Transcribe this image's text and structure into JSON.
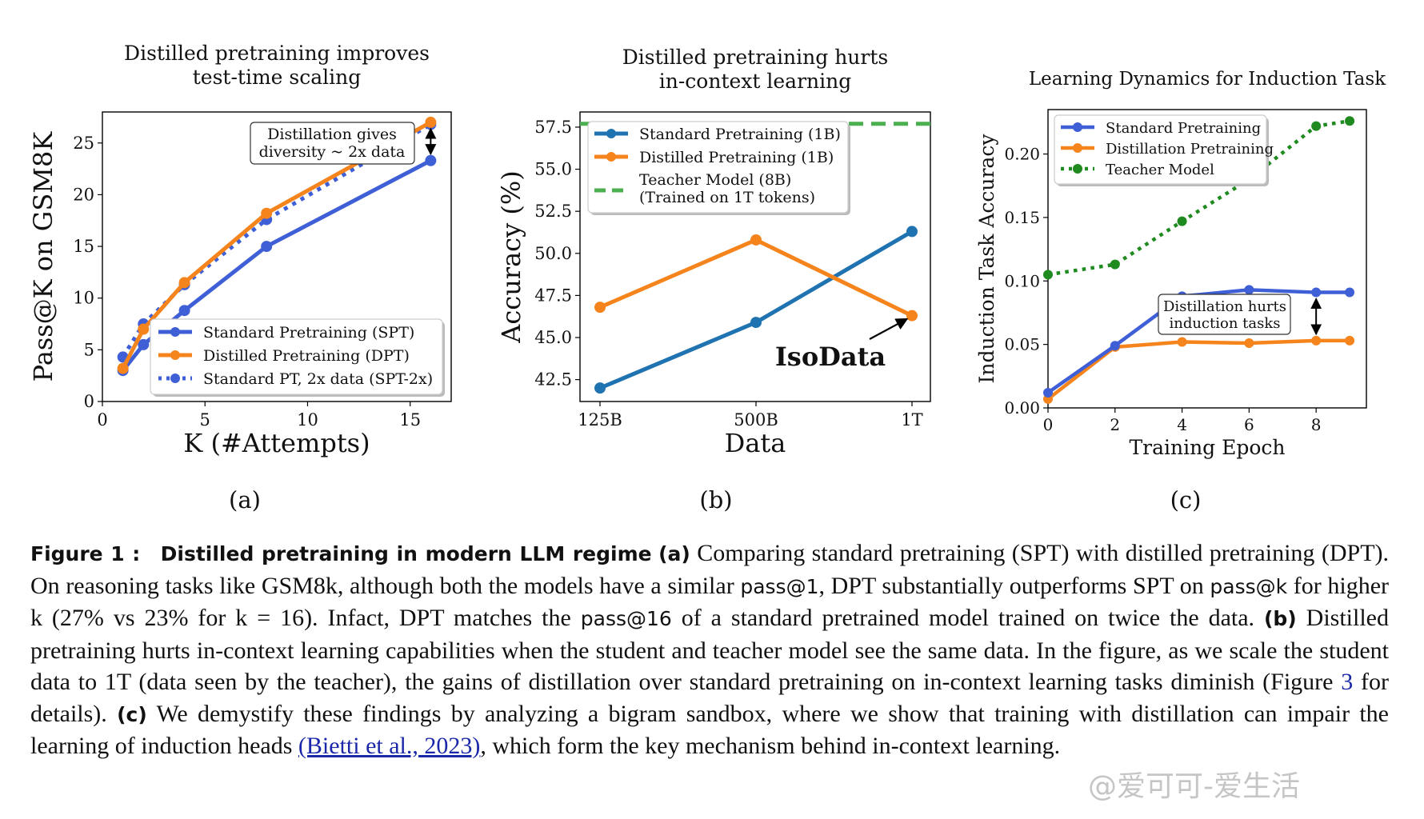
{
  "colors": {
    "standard": "#3f5fd6",
    "distilled": "#f6841c",
    "teacher_c": "#1f8a1f",
    "teacher_b": "#4caf50",
    "standard_b": "#1f73b0"
  },
  "chart_data": [
    {
      "id": "a",
      "type": "line",
      "title": [
        "Distilled pretraining improves",
        "test-time scaling"
      ],
      "xlabel": "K (#Attempts)",
      "ylabel": "Pass@K on GSM8K",
      "xlim": [
        0,
        17
      ],
      "ylim": [
        0,
        28
      ],
      "xticks": [
        0,
        5,
        10,
        15
      ],
      "yticks": [
        0,
        5,
        10,
        15,
        20,
        25
      ],
      "grid": false,
      "legend_position": "bottom-right",
      "panel_label": "(a)",
      "series": [
        {
          "name": "Standard Pretraining (SPT)",
          "color_key": "standard",
          "style": "solid",
          "x": [
            1,
            2,
            4,
            8,
            16
          ],
          "y": [
            3.0,
            5.5,
            8.8,
            15.0,
            23.3
          ]
        },
        {
          "name": "Distilled Pretraining (DPT)",
          "color_key": "distilled",
          "style": "solid",
          "x": [
            1,
            2,
            4,
            8,
            16
          ],
          "y": [
            3.2,
            7.0,
            11.5,
            18.2,
            27.0
          ]
        },
        {
          "name": "Standard PT, 2x data (SPT-2x)",
          "color_key": "standard",
          "style": "dotted",
          "x": [
            1,
            2,
            4,
            8,
            16
          ],
          "y": [
            4.3,
            7.5,
            11.3,
            17.6,
            26.8
          ]
        }
      ],
      "annotation": {
        "lines": [
          "Distillation gives",
          "diversity ~ 2x data"
        ],
        "x": 16,
        "y_from": 23.3,
        "y_to": 27.0
      }
    },
    {
      "id": "b",
      "type": "line",
      "title": [
        "Distilled pretraining hurts",
        "in-context learning"
      ],
      "xlabel": "Data",
      "ylabel": "Accuracy (%)",
      "categories": [
        "125B",
        "500B",
        "1T"
      ],
      "ylim": [
        41.2,
        58.4
      ],
      "yticks": [
        42.5,
        45.0,
        47.5,
        50.0,
        52.5,
        55.0,
        57.5
      ],
      "ytick_labels": [
        "42.5",
        "45.0",
        "47.5",
        "50.0",
        "52.5",
        "55.0",
        "57.5"
      ],
      "grid": false,
      "legend_position": "top-left",
      "panel_label": "(b)",
      "series": [
        {
          "name": "Standard Pretraining (1B)",
          "color_key": "standard_b",
          "style": "solid",
          "values": [
            42.0,
            45.9,
            51.3
          ]
        },
        {
          "name": "Distilled Pretraining (1B)",
          "color_key": "distilled",
          "style": "solid",
          "values": [
            46.8,
            50.8,
            46.3
          ]
        }
      ],
      "reference_line": {
        "name": [
          "Teacher Model (8B)",
          "(Trained on 1T tokens)"
        ],
        "value": 57.7,
        "color_key": "teacher_b"
      },
      "annotation": {
        "text": "IsoData",
        "category": "1T",
        "value": 46.3
      }
    },
    {
      "id": "c",
      "type": "line",
      "title": [
        "Learning Dynamics for Induction Task"
      ],
      "xlabel": "Training Epoch",
      "ylabel": "Induction Task Accuracy",
      "xlim": [
        0,
        9.5
      ],
      "ylim": [
        0,
        0.235
      ],
      "xticks": [
        0,
        2,
        4,
        6,
        8
      ],
      "yticks": [
        0.0,
        0.05,
        0.1,
        0.15,
        0.2
      ],
      "ytick_labels": [
        "0.00",
        "0.05",
        "0.10",
        "0.15",
        "0.20"
      ],
      "grid": false,
      "legend_position": "top-left",
      "panel_label": "(c)",
      "series": [
        {
          "name": "Standard Pretraining",
          "color_key": "standard",
          "style": "solid",
          "x": [
            0,
            2,
            4,
            6,
            8,
            9
          ],
          "y": [
            0.012,
            0.049,
            0.088,
            0.093,
            0.091,
            0.091
          ]
        },
        {
          "name": "Distillation Pretraining",
          "color_key": "distilled",
          "style": "solid",
          "x": [
            0,
            2,
            4,
            6,
            8,
            9
          ],
          "y": [
            0.007,
            0.048,
            0.052,
            0.051,
            0.053,
            0.053
          ]
        },
        {
          "name": "Teacher Model",
          "color_key": "teacher_c",
          "style": "dotted",
          "x": [
            0,
            2,
            4,
            6,
            8,
            9
          ],
          "y": [
            0.105,
            0.113,
            0.147,
            0.18,
            0.222,
            0.226
          ]
        }
      ],
      "annotation": {
        "lines": [
          "Distillation hurts",
          "induction tasks"
        ],
        "x": 8,
        "y_from": 0.053,
        "y_to": 0.091
      }
    }
  ],
  "caption": {
    "label": "Figure 1 :",
    "heading": "Distilled pretraining in modern LLM regime",
    "a_label": "(a)",
    "a_text_1": "Comparing standard pretraining (SPT) with distilled pretraining (DPT). On reasoning tasks like GSM8k, although both the models have a similar",
    "pass1": "pass@1",
    "a_text_2": ", DPT substantially outperforms SPT on",
    "passk": "pass@k",
    "a_text_3": "for higher k (27% vs 23% for k = 16). Infact, DPT matches the",
    "pass16": "pass@16",
    "a_text_4": "of a standard pretrained model trained on twice the data.",
    "b_label": "(b)",
    "b_text_1": "Distilled pretraining hurts in-context learning capabilities when the student and teacher model see the same data. In the figure, as we scale the student data to 1T (data seen by the teacher), the gains of distillation over standard pretraining on in-context learning tasks diminish (Figure",
    "fig_ref": "3",
    "b_text_2": "for details).",
    "c_label": "(c)",
    "c_text_1": "We demystify these findings by analyzing a bigram sandbox, where we show that training with distillation can impair the learning of induction heads",
    "cite": "(Bietti et al., 2023)",
    "c_text_2": ", which form the key mechanism behind in-context learning."
  },
  "watermark": "@爱可可-爱生活"
}
